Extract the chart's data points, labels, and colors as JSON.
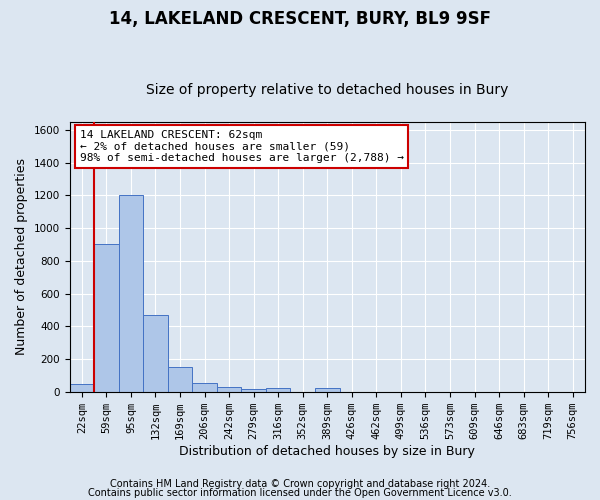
{
  "title": "14, LAKELAND CRESCENT, BURY, BL9 9SF",
  "subtitle": "Size of property relative to detached houses in Bury",
  "xlabel": "Distribution of detached houses by size in Bury",
  "ylabel": "Number of detached properties",
  "footer_line1": "Contains HM Land Registry data © Crown copyright and database right 2024.",
  "footer_line2": "Contains public sector information licensed under the Open Government Licence v3.0.",
  "bin_labels": [
    "22sqm",
    "59sqm",
    "95sqm",
    "132sqm",
    "169sqm",
    "206sqm",
    "242sqm",
    "279sqm",
    "316sqm",
    "352sqm",
    "389sqm",
    "426sqm",
    "462sqm",
    "499sqm",
    "536sqm",
    "573sqm",
    "609sqm",
    "646sqm",
    "683sqm",
    "719sqm",
    "756sqm"
  ],
  "bar_values": [
    45,
    900,
    1200,
    470,
    150,
    55,
    30,
    15,
    20,
    0,
    20,
    0,
    0,
    0,
    0,
    0,
    0,
    0,
    0,
    0,
    0
  ],
  "bar_color": "#aec6e8",
  "bar_edge_color": "#4472c4",
  "annotation_line1": "14 LAKELAND CRESCENT: 62sqm",
  "annotation_line2": "← 2% of detached houses are smaller (59)",
  "annotation_line3": "98% of semi-detached houses are larger (2,788) →",
  "annotation_box_color": "#ffffff",
  "annotation_box_edge_color": "#cc0000",
  "vline_color": "#cc0000",
  "ylim": [
    0,
    1650
  ],
  "yticks": [
    0,
    200,
    400,
    600,
    800,
    1000,
    1200,
    1400,
    1600
  ],
  "background_color": "#dce6f1",
  "plot_background_color": "#dce6f1",
  "grid_color": "#ffffff",
  "title_fontsize": 12,
  "subtitle_fontsize": 10,
  "xlabel_fontsize": 9,
  "ylabel_fontsize": 9,
  "tick_fontsize": 7.5,
  "annotation_fontsize": 8,
  "footer_fontsize": 7
}
